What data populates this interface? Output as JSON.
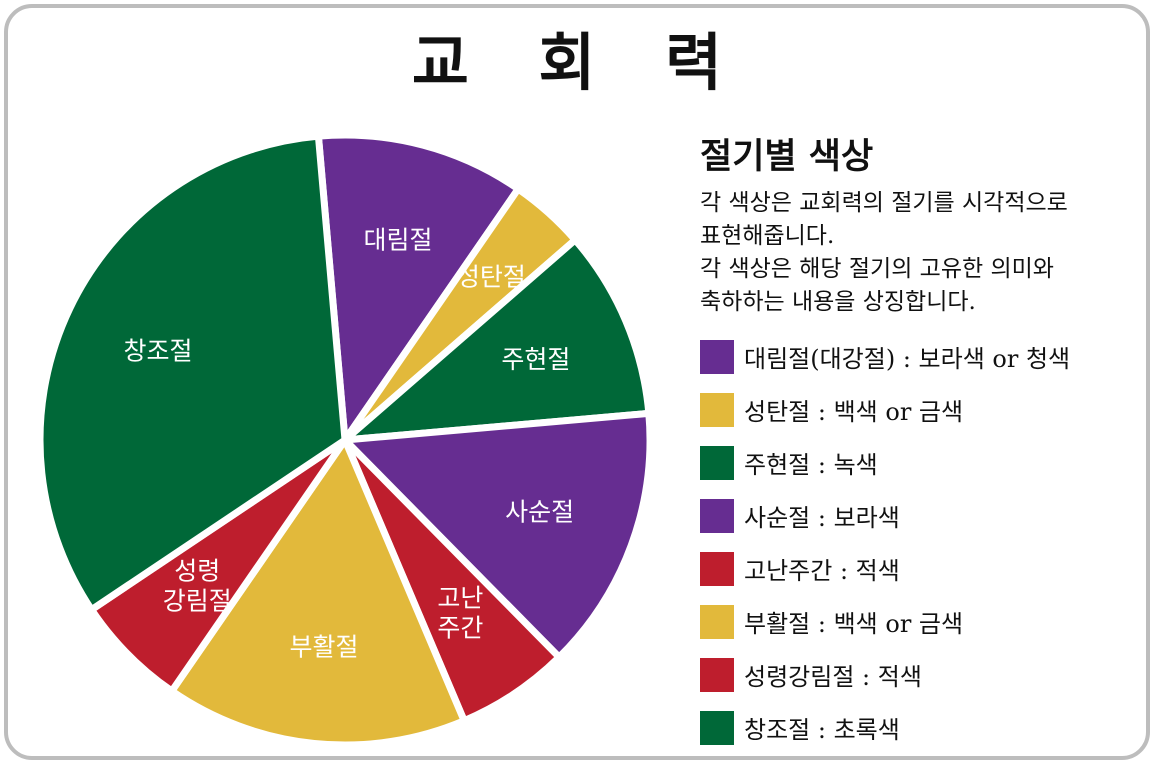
{
  "title": "교 회 력",
  "legend_title": "절기별 색상",
  "description": [
    "각 색상은 교회력의 절기를 시각적으로",
    "표현해줍니다.",
    "각 색상은 해당 절기의 고유한 의미와",
    "축하하는 내용을 상징합니다."
  ],
  "colors": {
    "purple": "#662D91",
    "gold": "#E2B93B",
    "green": "#006838",
    "red": "#BE1E2D"
  },
  "legend": [
    {
      "text": "대림절(대강절) : 보라색 or 청색",
      "color": "#662D91"
    },
    {
      "text": "성탄절 : 백색 or 금색",
      "color": "#E2B93B"
    },
    {
      "text": "주현절 : 녹색",
      "color": "#006838"
    },
    {
      "text": "사순절 : 보라색",
      "color": "#662D91"
    },
    {
      "text": "고난주간 : 적색",
      "color": "#BE1E2D"
    },
    {
      "text": "부활절 : 백색 or 금색",
      "color": "#E2B93B"
    },
    {
      "text": "성령강림절 : 적색",
      "color": "#BE1E2D"
    },
    {
      "text": "창조절 : 초록색",
      "color": "#006838"
    }
  ],
  "chart_data": {
    "type": "pie",
    "title": "교 회 력",
    "legend_placement": "right",
    "slices": [
      {
        "label": [
          "대림절"
        ],
        "value": 11,
        "color": "#662D91"
      },
      {
        "label": [
          "성탄절"
        ],
        "value": 4,
        "color": "#E2B93B"
      },
      {
        "label": [
          "주현절"
        ],
        "value": 10,
        "color": "#006838"
      },
      {
        "label": [
          "사순절"
        ],
        "value": 14,
        "color": "#662D91"
      },
      {
        "label": [
          "고난",
          "주간"
        ],
        "value": 6,
        "color": "#BE1E2D"
      },
      {
        "label": [
          "부활절"
        ],
        "value": 16,
        "color": "#E2B93B"
      },
      {
        "label": [
          "성령",
          "강림절"
        ],
        "value": 6,
        "color": "#BE1E2D"
      },
      {
        "label": [
          "창조절"
        ],
        "value": 33,
        "color": "#006838"
      }
    ]
  }
}
